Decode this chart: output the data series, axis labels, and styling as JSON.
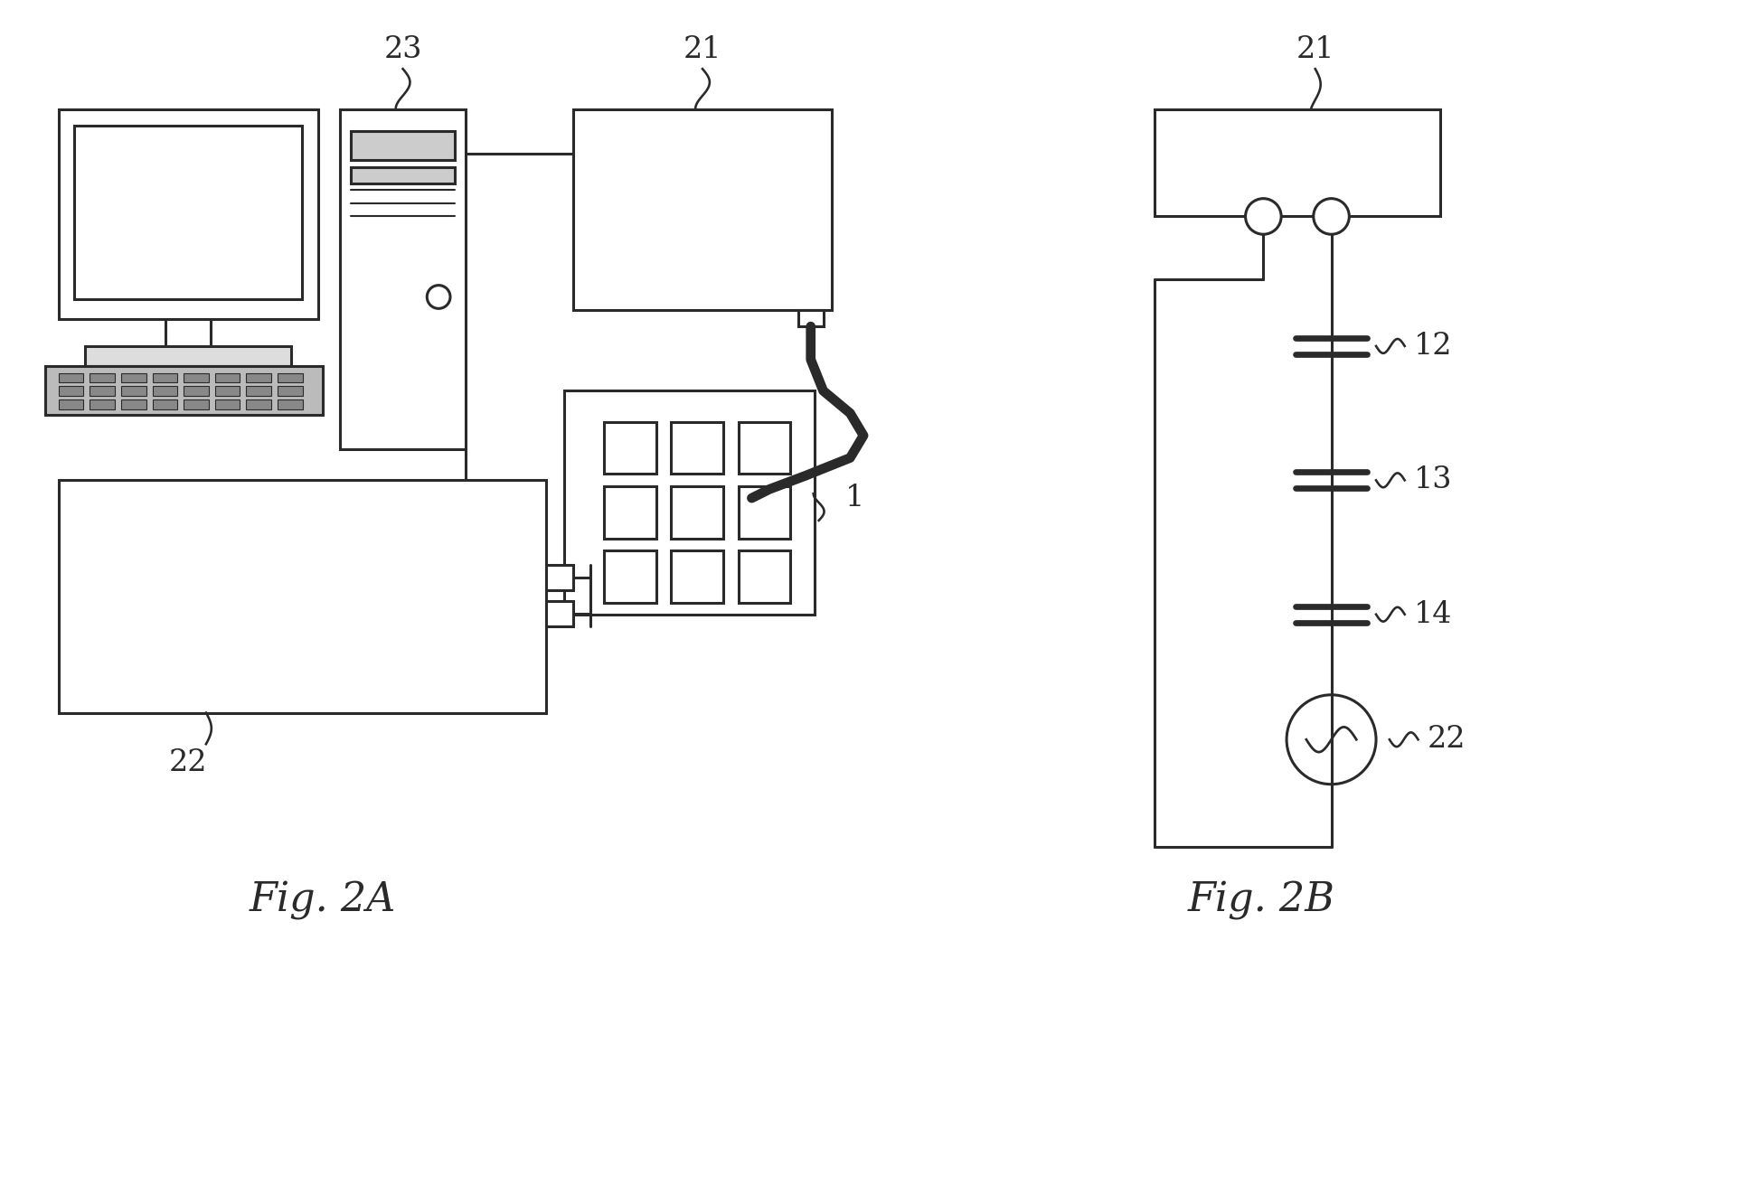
{
  "bg_color": "#ffffff",
  "line_color": "#2a2a2a",
  "line_width": 2.2,
  "fig_caption_2a": "Fig. 2A",
  "fig_caption_2b": "Fig. 2B",
  "caption_fontsize": 32,
  "label_fontsize": 24
}
